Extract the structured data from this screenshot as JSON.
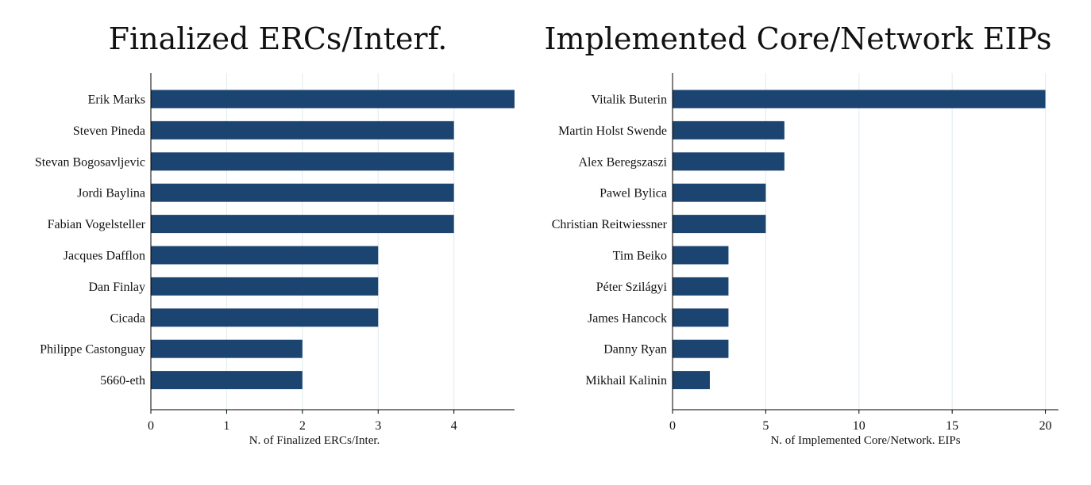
{
  "colors": {
    "bar": "#1b4570",
    "grid": "#e3eef3",
    "axis": "#000000",
    "text": "#111111"
  },
  "chart_data": [
    {
      "type": "bar",
      "orientation": "horizontal",
      "title": "Finalized ERCs/Interf.",
      "xlabel": "N. of Finalized ERCs/Inter.",
      "ylabel": "",
      "xlim": [
        0,
        4.8
      ],
      "xticks": [
        0,
        1,
        2,
        3,
        4
      ],
      "grid": true,
      "categories": [
        "Erik Marks",
        "Steven Pineda",
        "Stevan Bogosavljevic",
        "Jordi Baylina",
        "Fabian Vogelsteller",
        "Jacques Dafflon",
        "Dan Finlay",
        "Cicada",
        "Philippe Castonguay",
        "5660-eth"
      ],
      "values": [
        5,
        4,
        4,
        4,
        4,
        3,
        3,
        3,
        2,
        2
      ]
    },
    {
      "type": "bar",
      "orientation": "horizontal",
      "title": "Implemented Core/Network EIPs",
      "xlabel": "N. of Implemented Core/Network. EIPs",
      "ylabel": "",
      "xlim": [
        0,
        20.7
      ],
      "xticks": [
        0,
        5,
        10,
        15,
        20
      ],
      "grid": true,
      "categories": [
        "Vitalik Buterin",
        "Martin Holst Swende",
        "Alex Beregszaszi",
        "Pawel Bylica",
        "Christian Reitwiessner",
        "Tim Beiko",
        "Péter Szilágyi",
        "James Hancock",
        "Danny Ryan",
        "Mikhail Kalinin"
      ],
      "values": [
        20,
        6,
        6,
        5,
        5,
        3,
        3,
        3,
        3,
        2
      ]
    }
  ]
}
